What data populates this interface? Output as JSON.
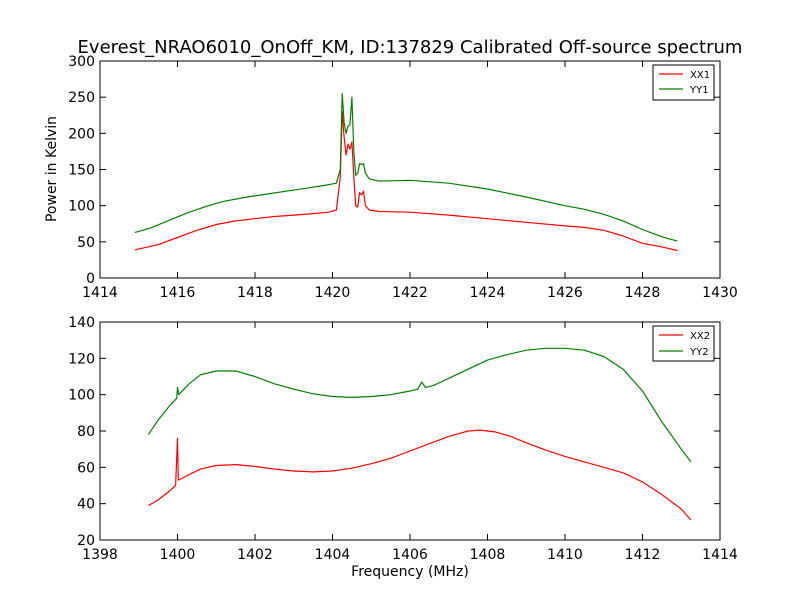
{
  "chart_data": [
    {
      "type": "line",
      "title": "Everest_NRAO6010_OnOff_KM, ID:137829 Calibrated Off-source spectrum",
      "xlabel": "",
      "ylabel": "Power in Kelvin",
      "xlim": [
        1414,
        1430
      ],
      "ylim": [
        0,
        300
      ],
      "xticks": [
        1414,
        1416,
        1418,
        1420,
        1422,
        1424,
        1426,
        1428,
        1430
      ],
      "yticks": [
        0,
        50,
        100,
        150,
        200,
        250,
        300
      ],
      "legend": "top-right",
      "series": [
        {
          "name": "XX1",
          "color": "#ff0000",
          "points": [
            [
              1414.9,
              39
            ],
            [
              1415.5,
              46
            ],
            [
              1416,
              56
            ],
            [
              1416.5,
              66
            ],
            [
              1417,
              74
            ],
            [
              1417.5,
              79
            ],
            [
              1418,
              82
            ],
            [
              1418.5,
              85
            ],
            [
              1419,
              87
            ],
            [
              1419.5,
              89
            ],
            [
              1419.9,
              91
            ],
            [
              1420.1,
              94
            ],
            [
              1420.2,
              140
            ],
            [
              1420.25,
              230
            ],
            [
              1420.3,
              195
            ],
            [
              1420.35,
              170
            ],
            [
              1420.4,
              185
            ],
            [
              1420.45,
              178
            ],
            [
              1420.5,
              188
            ],
            [
              1420.55,
              140
            ],
            [
              1420.6,
              100
            ],
            [
              1420.65,
              98
            ],
            [
              1420.7,
              118
            ],
            [
              1420.75,
              115
            ],
            [
              1420.8,
              120
            ],
            [
              1420.85,
              100
            ],
            [
              1420.95,
              94
            ],
            [
              1421.2,
              92
            ],
            [
              1422,
              91
            ],
            [
              1423,
              87
            ],
            [
              1424,
              82
            ],
            [
              1425,
              77
            ],
            [
              1426,
              72
            ],
            [
              1426.5,
              70
            ],
            [
              1427,
              66
            ],
            [
              1427.5,
              58
            ],
            [
              1428,
              48
            ],
            [
              1428.5,
              43
            ],
            [
              1428.9,
              38
            ]
          ]
        },
        {
          "name": "YY1",
          "color": "#008000",
          "points": [
            [
              1414.9,
              63
            ],
            [
              1415.3,
              69
            ],
            [
              1415.8,
              80
            ],
            [
              1416.3,
              91
            ],
            [
              1416.8,
              100
            ],
            [
              1417.2,
              106
            ],
            [
              1417.8,
              112
            ],
            [
              1418.3,
              116
            ],
            [
              1418.8,
              120
            ],
            [
              1419.3,
              124
            ],
            [
              1419.8,
              128
            ],
            [
              1420.1,
              131
            ],
            [
              1420.2,
              150
            ],
            [
              1420.25,
              255
            ],
            [
              1420.3,
              215
            ],
            [
              1420.35,
              200
            ],
            [
              1420.4,
              210
            ],
            [
              1420.45,
              212
            ],
            [
              1420.5,
              250
            ],
            [
              1420.55,
              175
            ],
            [
              1420.6,
              142
            ],
            [
              1420.65,
              145
            ],
            [
              1420.7,
              158
            ],
            [
              1420.75,
              157
            ],
            [
              1420.8,
              158
            ],
            [
              1420.85,
              145
            ],
            [
              1420.95,
              137
            ],
            [
              1421.2,
              134
            ],
            [
              1422,
              135
            ],
            [
              1423,
              131
            ],
            [
              1424,
              123
            ],
            [
              1425,
              112
            ],
            [
              1426,
              100
            ],
            [
              1426.5,
              95
            ],
            [
              1427,
              88
            ],
            [
              1427.5,
              79
            ],
            [
              1428,
              67
            ],
            [
              1428.5,
              57
            ],
            [
              1428.9,
              51
            ]
          ]
        }
      ]
    },
    {
      "type": "line",
      "title": "",
      "xlabel": "Frequency (MHz)",
      "ylabel": "",
      "xlim": [
        1398,
        1414
      ],
      "ylim": [
        20,
        140
      ],
      "xticks": [
        1398,
        1400,
        1402,
        1404,
        1406,
        1408,
        1410,
        1412,
        1414
      ],
      "yticks": [
        20,
        40,
        60,
        80,
        100,
        120,
        140
      ],
      "legend": "top-right",
      "series": [
        {
          "name": "XX2",
          "color": "#ff0000",
          "points": [
            [
              1399.25,
              39
            ],
            [
              1399.5,
              42
            ],
            [
              1399.8,
              47
            ],
            [
              1399.95,
              50
            ],
            [
              1400.0,
              76
            ],
            [
              1400.02,
              53
            ],
            [
              1400.3,
              56
            ],
            [
              1400.6,
              59
            ],
            [
              1401,
              61
            ],
            [
              1401.5,
              61.5
            ],
            [
              1402,
              60.5
            ],
            [
              1402.5,
              59
            ],
            [
              1403,
              58
            ],
            [
              1403.5,
              57.5
            ],
            [
              1404,
              58
            ],
            [
              1404.5,
              59.5
            ],
            [
              1405,
              62
            ],
            [
              1405.5,
              65
            ],
            [
              1406,
              69
            ],
            [
              1406.5,
              73
            ],
            [
              1407,
              77
            ],
            [
              1407.5,
              80
            ],
            [
              1407.8,
              80.5
            ],
            [
              1408.2,
              79.5
            ],
            [
              1408.6,
              77
            ],
            [
              1409,
              73.5
            ],
            [
              1409.5,
              69.5
            ],
            [
              1410,
              66
            ],
            [
              1410.5,
              63
            ],
            [
              1411,
              60
            ],
            [
              1411.5,
              57
            ],
            [
              1412,
              52
            ],
            [
              1412.5,
              45
            ],
            [
              1413,
              37
            ],
            [
              1413.25,
              31
            ]
          ]
        },
        {
          "name": "YY2",
          "color": "#008000",
          "points": [
            [
              1399.25,
              78
            ],
            [
              1399.5,
              86
            ],
            [
              1399.8,
              94
            ],
            [
              1399.98,
              98
            ],
            [
              1400.0,
              104
            ],
            [
              1400.03,
              100
            ],
            [
              1400.3,
              106
            ],
            [
              1400.6,
              111
            ],
            [
              1401,
              113
            ],
            [
              1401.5,
              113
            ],
            [
              1402,
              110
            ],
            [
              1402.5,
              106
            ],
            [
              1403,
              103
            ],
            [
              1403.5,
              100.5
            ],
            [
              1404,
              99
            ],
            [
              1404.5,
              98.5
            ],
            [
              1405,
              99
            ],
            [
              1405.5,
              100
            ],
            [
              1406,
              102
            ],
            [
              1406.2,
              103
            ],
            [
              1406.3,
              107
            ],
            [
              1406.4,
              104
            ],
            [
              1406.6,
              105
            ],
            [
              1407,
              109
            ],
            [
              1407.5,
              114
            ],
            [
              1408,
              119
            ],
            [
              1408.5,
              122
            ],
            [
              1409,
              124.5
            ],
            [
              1409.5,
              125.5
            ],
            [
              1410,
              125.5
            ],
            [
              1410.5,
              124.5
            ],
            [
              1411,
              121
            ],
            [
              1411.5,
              114
            ],
            [
              1412,
              102
            ],
            [
              1412.5,
              85
            ],
            [
              1413,
              70
            ],
            [
              1413.25,
              63
            ]
          ]
        }
      ]
    }
  ]
}
